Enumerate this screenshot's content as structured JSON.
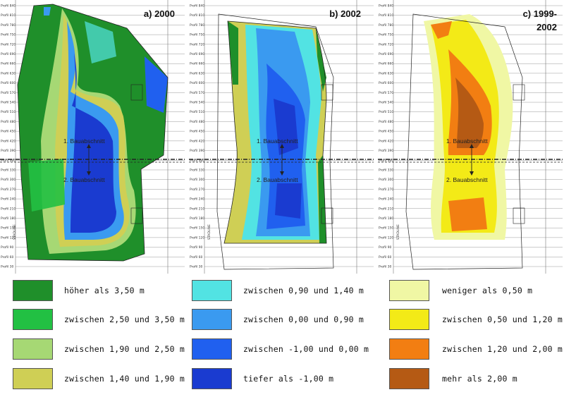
{
  "panels": [
    {
      "id": "a",
      "title": "a) 2000"
    },
    {
      "id": "b",
      "title": "b) 2002"
    },
    {
      "id": "c",
      "title": "c) 1999-\n2002"
    }
  ],
  "map_labels": {
    "section1": "1. Bauabschnitt",
    "section2": "2. Bauabschnitt",
    "stadium": "STADLINE"
  },
  "profile_labels": [
    "Profil 840",
    "Profil 810",
    "Profil 780",
    "Profil 750",
    "Profil 720",
    "Profil 690",
    "Profil 660",
    "Profil 630",
    "Profil 600",
    "Profil 570",
    "Profil 540",
    "Profil 510",
    "Profil 480",
    "Profil 450",
    "Profil 420",
    "Profil 390",
    "Profil 360",
    "Profil 330",
    "Profil 300",
    "Profil 270",
    "Profil 240",
    "Profil 210",
    "Profil 180",
    "Profil 150",
    "Profil 120",
    "Profil 90",
    "Profil 60",
    "Profil 30"
  ],
  "legend": {
    "group_a": [
      {
        "label": "höher als 3,50 m",
        "color": "#1f8f2a"
      },
      {
        "label": "zwischen 2,50 und 3,50 m",
        "color": "#22c043"
      },
      {
        "label": "zwischen 1,90 und 2,50 m",
        "color": "#a6d874"
      },
      {
        "label": "zwischen 1,40 und 1,90 m",
        "color": "#cfcf55"
      }
    ],
    "group_b": [
      {
        "label": "zwischen 0,90 und 1,40 m",
        "color": "#52e3e3"
      },
      {
        "label": "zwischen 0,00 und 0,90 m",
        "color": "#3a9af0"
      },
      {
        "label": "zwischen -1,00 und 0,00 m",
        "color": "#2060ef"
      },
      {
        "label": "tiefer als -1,00 m",
        "color": "#1a3bd0"
      }
    ],
    "group_c": [
      {
        "label": "weniger als 0,50 m",
        "color": "#f0f7a4"
      },
      {
        "label": "zwischen 0,50 und 1,20 m",
        "color": "#f3ea17"
      },
      {
        "label": "zwischen 1,20 und 2,00 m",
        "color": "#f27e12"
      },
      {
        "label": "mehr als 2,00 m",
        "color": "#b55a14"
      }
    ]
  }
}
